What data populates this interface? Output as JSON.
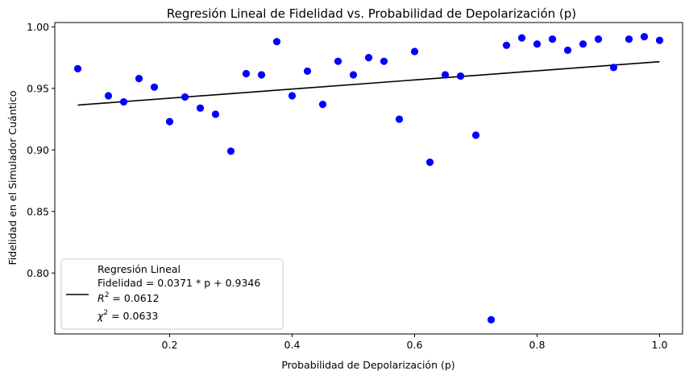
{
  "chart_data": {
    "type": "scatter",
    "title": "Regresión Lineal de Fidelidad vs. Probabilidad de Depolarización (p)",
    "xlabel": "Probabilidad de Depolarización (p)",
    "ylabel": "Fidelidad en el Simulador Cuántico",
    "xlim": [
      0.0125,
      1.0375
    ],
    "ylim": [
      0.7505,
      1.0035
    ],
    "x_ticks": [
      0.2,
      0.4,
      0.6,
      0.8,
      1.0
    ],
    "x_tick_labels": [
      "0.2",
      "0.4",
      "0.6",
      "0.8",
      "1.0"
    ],
    "y_ticks": [
      0.8,
      0.85,
      0.9,
      0.95,
      1.0
    ],
    "y_tick_labels": [
      "0.80",
      "0.85",
      "0.90",
      "0.95",
      "1.00"
    ],
    "grid": false,
    "points": {
      "color": "#0000ff",
      "x": [
        0.05,
        0.1,
        0.125,
        0.15,
        0.175,
        0.2,
        0.225,
        0.25,
        0.275,
        0.3,
        0.325,
        0.35,
        0.375,
        0.4,
        0.425,
        0.45,
        0.475,
        0.5,
        0.525,
        0.55,
        0.575,
        0.6,
        0.625,
        0.65,
        0.675,
        0.7,
        0.725,
        0.75,
        0.775,
        0.8,
        0.825,
        0.85,
        0.875,
        0.9,
        0.925,
        0.95,
        0.975,
        1.0
      ],
      "y": [
        0.966,
        0.944,
        0.939,
        0.958,
        0.951,
        0.923,
        0.943,
        0.934,
        0.929,
        0.899,
        0.962,
        0.961,
        0.988,
        0.944,
        0.964,
        0.937,
        0.972,
        0.961,
        0.975,
        0.972,
        0.925,
        0.98,
        0.89,
        0.961,
        0.96,
        0.912,
        0.762,
        0.985,
        0.991,
        0.986,
        0.99,
        0.981,
        0.986,
        0.99,
        0.967,
        0.99,
        0.992,
        0.989
      ]
    },
    "regression": {
      "name": "Regresión Lineal",
      "slope": 0.0371,
      "intercept": 0.9346,
      "x_range": [
        0.05,
        1.0
      ],
      "color": "#000000"
    },
    "legend": {
      "position": "lower-left",
      "lines": [
        "Regresión Lineal",
        "Fidelidad = 0.0371 * p + 0.9346",
        "R2 = 0.0612",
        "χ2 = 0.0633"
      ],
      "r2_label": "R",
      "r2_value": " = 0.0612",
      "chi2_label": "χ",
      "chi2_value": " = 0.0633",
      "superscript": "2"
    }
  }
}
